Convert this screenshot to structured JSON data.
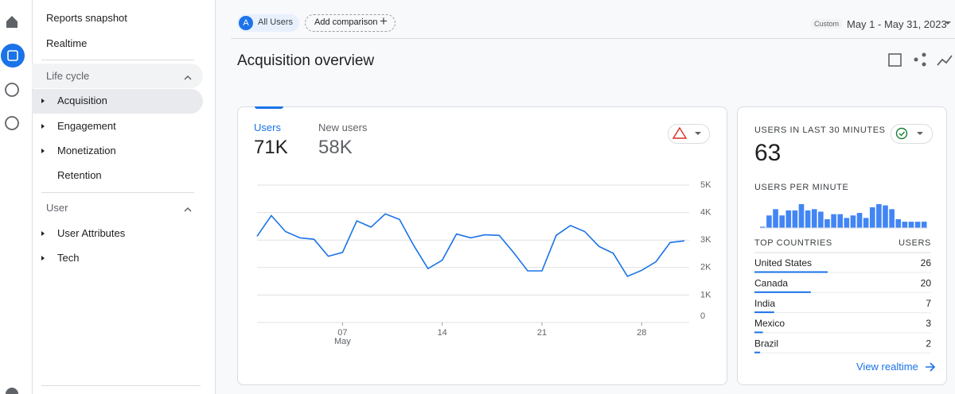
{
  "top_bar": {
    "segment_avatar": "A",
    "segment": "All Users",
    "add_comparison": "Add comparison",
    "date_badge": "Custom",
    "date_range": "May 1 - May 31, 2023"
  },
  "nav": {
    "top_items": [
      "Reports snapshot",
      "Realtime"
    ],
    "sections": [
      {
        "title": "Life cycle",
        "items": [
          "Acquisition",
          "Engagement",
          "Monetization",
          "Retention"
        ]
      },
      {
        "title": "User",
        "items": [
          "User Attributes",
          "Tech"
        ]
      }
    ]
  },
  "page_title": "Acquisition overview",
  "users_card": {
    "tabs": [
      {
        "label": "Users",
        "value": "71K"
      },
      {
        "label": "New users",
        "value": "58K"
      }
    ],
    "chart_data": {
      "type": "line",
      "color": "#1a73e8",
      "x": [
        1,
        2,
        3,
        4,
        5,
        6,
        7,
        8,
        9,
        10,
        11,
        12,
        13,
        14,
        15,
        16,
        17,
        18,
        19,
        20,
        21,
        22,
        23,
        24,
        25,
        26,
        27,
        28,
        29,
        30,
        31
      ],
      "values": [
        3140,
        3890,
        3310,
        3080,
        3030,
        2410,
        2550,
        3700,
        3470,
        3950,
        3750,
        2800,
        1960,
        2270,
        3220,
        3080,
        3190,
        3170,
        2550,
        1880,
        1880,
        3170,
        3530,
        3310,
        2770,
        2520,
        1680,
        1900,
        2210,
        2910,
        2970
      ],
      "xlim": [
        1,
        31
      ],
      "xticks": [
        {
          "value": 7,
          "label": "07"
        },
        14,
        21,
        28
      ],
      "x_sublabel": "May",
      "ylim": [
        0,
        5000
      ],
      "yticks": [
        0,
        {
          "value": 1000,
          "label": "1K"
        },
        {
          "value": 2000,
          "label": "2K"
        },
        {
          "value": 3000,
          "label": "3K"
        },
        {
          "value": 4000,
          "label": "4K"
        },
        {
          "value": 5000,
          "label": "5K"
        }
      ],
      "grid": true
    }
  },
  "realtime_card": {
    "title": "USERS IN LAST 30 MINUTES",
    "value": 63,
    "per_minute_title": "USERS PER MINUTE",
    "per_minute": {
      "type": "bar",
      "color": "#4285f4",
      "values": [
        0.2,
        2,
        3,
        2,
        2.8,
        2.8,
        3.8,
        2.8,
        3,
        2.6,
        1.4,
        2.2,
        2.2,
        1.6,
        2,
        2.4,
        1.6,
        3.3,
        3.8,
        3.6,
        3,
        1.4,
        1,
        1,
        1,
        1
      ]
    },
    "countries": {
      "type": "bar",
      "color": "#1a73e8",
      "header": "TOP COUNTRIES",
      "value_header": "USERS",
      "categories": [
        "United States",
        "Canada",
        "India",
        "Mexico",
        "Brazil"
      ],
      "values": [
        26,
        20,
        7,
        3,
        2
      ]
    },
    "link": "View realtime"
  }
}
